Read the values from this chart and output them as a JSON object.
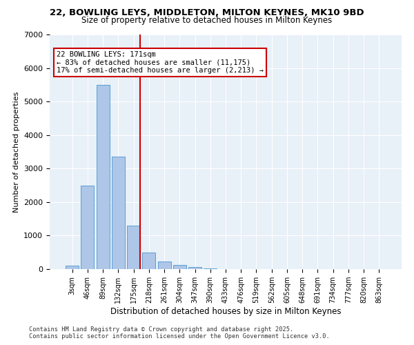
{
  "title_line1": "22, BOWLING LEYS, MIDDLETON, MILTON KEYNES, MK10 9BD",
  "title_line2": "Size of property relative to detached houses in Milton Keynes",
  "xlabel": "Distribution of detached houses by size in Milton Keynes",
  "ylabel": "Number of detached properties",
  "categories": [
    "3sqm",
    "46sqm",
    "89sqm",
    "132sqm",
    "175sqm",
    "218sqm",
    "261sqm",
    "304sqm",
    "347sqm",
    "390sqm",
    "433sqm",
    "476sqm",
    "519sqm",
    "562sqm",
    "605sqm",
    "648sqm",
    "691sqm",
    "734sqm",
    "777sqm",
    "820sqm",
    "863sqm"
  ],
  "values": [
    100,
    2500,
    5500,
    3350,
    1300,
    500,
    220,
    120,
    60,
    30,
    0,
    0,
    0,
    0,
    0,
    0,
    0,
    0,
    0,
    0,
    0
  ],
  "bar_color": "#aec6e8",
  "bar_edge_color": "#5a9fd4",
  "vline_x": 4,
  "vline_color": "#cc0000",
  "annotation_title": "22 BOWLING LEYS: 171sqm",
  "annotation_line1": "← 83% of detached houses are smaller (11,175)",
  "annotation_line2": "17% of semi-detached houses are larger (2,213) →",
  "annotation_box_color": "#cc0000",
  "ylim": [
    0,
    7000
  ],
  "yticks": [
    0,
    1000,
    2000,
    3000,
    4000,
    5000,
    6000,
    7000
  ],
  "bg_color": "#e8f0f8",
  "footer_line1": "Contains HM Land Registry data © Crown copyright and database right 2025.",
  "footer_line2": "Contains public sector information licensed under the Open Government Licence v3.0."
}
